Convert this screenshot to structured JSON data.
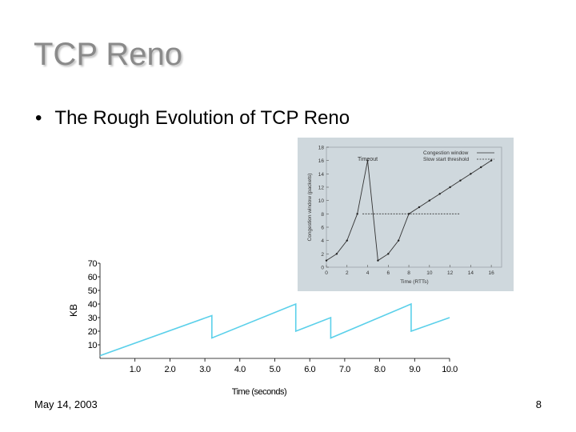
{
  "slide": {
    "title": "TCP Reno",
    "bullet": "The Rough Evolution of TCP Reno",
    "bullet_symbol": "•",
    "footer_date": "May 14, 2003",
    "page_number": "8"
  },
  "colors": {
    "title": "#8a8a8a",
    "main_line": "#5bd0ea",
    "inset_bg": "#cfd8dd"
  },
  "chart_data": [
    {
      "type": "line",
      "xlabel": "Time (seconds)",
      "ylabel": "KB",
      "xlim": [
        0,
        10
      ],
      "ylim": [
        0,
        70
      ],
      "xticks": [
        1,
        2,
        3,
        4,
        5,
        6,
        7,
        8,
        9,
        10
      ],
      "xtick_labels": [
        "1.0",
        "2.0",
        "3.0",
        "4.0",
        "5.0",
        "6.0",
        "7.0",
        "8.0",
        "9.0",
        "10.0"
      ],
      "yticks": [
        10,
        20,
        30,
        40,
        50,
        60,
        70
      ],
      "ytick_labels": [
        "10",
        "20",
        "30",
        "40",
        "50",
        "60",
        "70"
      ],
      "series": [
        {
          "x": [
            0,
            3.2,
            3.2,
            5.6,
            5.6,
            6.6,
            6.6,
            8.9,
            8.9,
            10.0
          ],
          "y": [
            2,
            31.5,
            15,
            40,
            20,
            30,
            15,
            40,
            20,
            30
          ]
        }
      ]
    },
    {
      "type": "line",
      "xlabel": "Time (RTTs)",
      "ylabel": "Congestion window (packets)",
      "annotation": "Timeout",
      "xlim": [
        0,
        17
      ],
      "ylim": [
        0,
        18
      ],
      "xticks": [
        0,
        2,
        4,
        6,
        8,
        10,
        12,
        14,
        16
      ],
      "xtick_labels": [
        "0",
        "2",
        "4",
        "6",
        "8",
        "10",
        "12",
        "14",
        "16"
      ],
      "yticks": [
        0,
        2,
        4,
        6,
        8,
        10,
        12,
        14,
        16,
        18
      ],
      "ytick_labels": [
        "0",
        "2",
        "4",
        "6",
        "8",
        "10",
        "12",
        "14",
        "16",
        "18"
      ],
      "legend_position": "top-right",
      "series": [
        {
          "name": "Congestion window",
          "x": [
            0,
            1,
            2,
            3,
            4,
            5,
            6,
            7,
            8,
            9,
            10,
            11,
            12,
            13,
            14,
            15,
            16
          ],
          "y": [
            1,
            2,
            4,
            8,
            16,
            1,
            2,
            4,
            8,
            9,
            10,
            11,
            12,
            13,
            14,
            15,
            16
          ]
        },
        {
          "name": "Slow start threshold",
          "style": "dashed",
          "x": [
            3.5,
            13
          ],
          "y": [
            8,
            8
          ]
        }
      ]
    }
  ]
}
